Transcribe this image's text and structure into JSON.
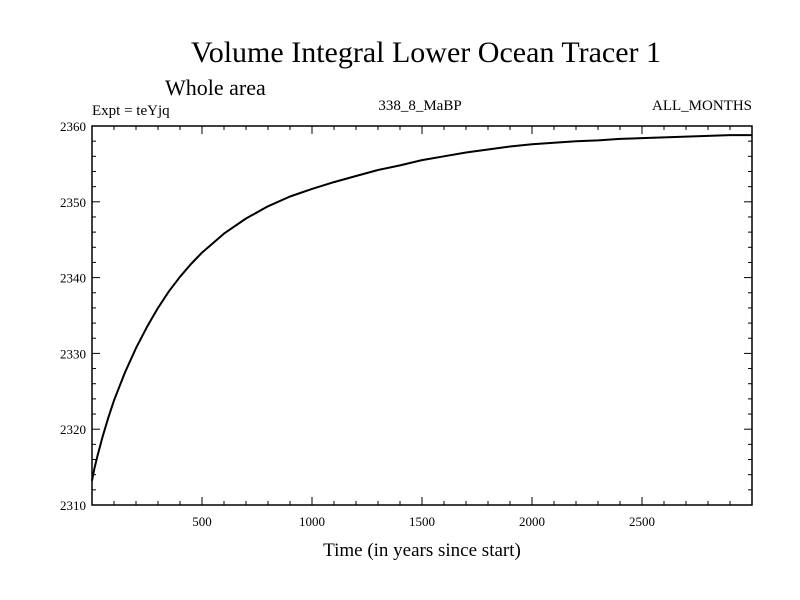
{
  "chart_data": {
    "type": "line",
    "title": "Volume Integral Lower Ocean Tracer 1",
    "subtitle": "Whole area",
    "expt_label": "Expt = teYjq",
    "run_label": "338_8_MaBP",
    "months_label": "ALL_MONTHS",
    "xlabel": "Time (in years since start)",
    "ylabel": "",
    "xlim": [
      0,
      3000
    ],
    "ylim": [
      2310,
      2360
    ],
    "x_ticks": [
      500,
      1000,
      1500,
      2000,
      2500
    ],
    "y_ticks": [
      2310,
      2320,
      2330,
      2340,
      2350,
      2360
    ],
    "x_minor_step": 100,
    "y_minor_step": 2,
    "grid": false,
    "series": [
      {
        "name": "Volume Integral Lower Ocean Tracer 1",
        "color": "#000000",
        "x": [
          0,
          10,
          25,
          50,
          75,
          100,
          150,
          200,
          250,
          300,
          350,
          400,
          450,
          500,
          600,
          700,
          800,
          900,
          1000,
          1100,
          1200,
          1300,
          1400,
          1500,
          1600,
          1700,
          1800,
          1900,
          2000,
          2100,
          2200,
          2300,
          2400,
          2500,
          2600,
          2700,
          2800,
          2900,
          3000
        ],
        "y": [
          2313.2,
          2314.7,
          2316.5,
          2319.2,
          2321.6,
          2323.8,
          2327.5,
          2330.7,
          2333.5,
          2336.0,
          2338.2,
          2340.1,
          2341.8,
          2343.3,
          2345.8,
          2347.8,
          2349.4,
          2350.7,
          2351.7,
          2352.6,
          2353.4,
          2354.2,
          2354.8,
          2355.5,
          2356.0,
          2356.5,
          2356.9,
          2357.3,
          2357.6,
          2357.8,
          2358.0,
          2358.1,
          2358.3,
          2358.4,
          2358.5,
          2358.6,
          2358.7,
          2358.8,
          2358.8
        ]
      }
    ]
  }
}
